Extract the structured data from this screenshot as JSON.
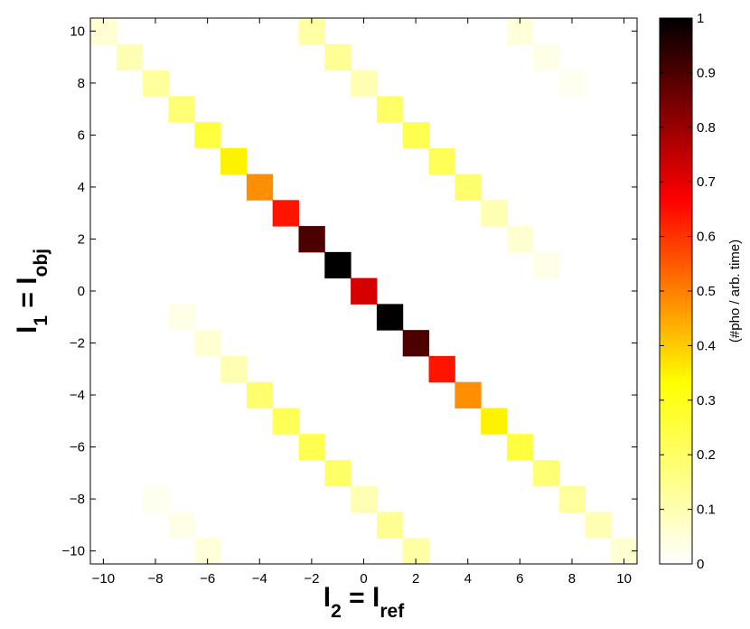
{
  "chart_data": {
    "type": "heatmap",
    "xlabel": {
      "base": "l",
      "sub1": "2",
      "eq": " = ",
      "base2": "l",
      "sub2": "ref"
    },
    "ylabel": {
      "base": "l",
      "sub1": "1",
      "eq": " = ",
      "base2": "l",
      "sub2": "obj"
    },
    "xlim": [
      -10.5,
      10.5
    ],
    "ylim": [
      -10.5,
      10.5
    ],
    "xticks": [
      -10,
      -8,
      -6,
      -4,
      -2,
      0,
      2,
      4,
      6,
      8,
      10
    ],
    "yticks": [
      -10,
      -8,
      -6,
      -4,
      -2,
      0,
      2,
      4,
      6,
      8,
      10
    ],
    "xtick_labels": [
      "−10",
      "−8",
      "−6",
      "−4",
      "−2",
      "0",
      "2",
      "4",
      "6",
      "8",
      "10"
    ],
    "ytick_labels": [
      "−10",
      "−8",
      "−6",
      "−4",
      "−2",
      "0",
      "2",
      "4",
      "6",
      "8",
      "10"
    ],
    "colormap": "hot (reversed)",
    "colorbar": {
      "label": "(#pho / arb. time)",
      "range": [
        0,
        1
      ],
      "ticks": [
        0,
        0.1,
        0.2,
        0.3,
        0.4,
        0.5,
        0.6,
        0.7,
        0.8,
        0.9,
        1
      ],
      "tick_labels": [
        "0",
        "0.1",
        "0.2",
        "0.3",
        "0.4",
        "0.5",
        "0.6",
        "0.7",
        "0.8",
        "0.9",
        "1"
      ]
    },
    "cells": [
      {
        "x": -10,
        "y": 10,
        "v": 0.06
      },
      {
        "x": -9,
        "y": 9,
        "v": 0.1
      },
      {
        "x": -8,
        "y": 8,
        "v": 0.13
      },
      {
        "x": -7,
        "y": 7,
        "v": 0.18
      },
      {
        "x": -6,
        "y": 6,
        "v": 0.25
      },
      {
        "x": -5,
        "y": 5,
        "v": 0.35
      },
      {
        "x": -4,
        "y": 4,
        "v": 0.48
      },
      {
        "x": -3,
        "y": 3,
        "v": 0.64
      },
      {
        "x": -2,
        "y": 2,
        "v": 0.9
      },
      {
        "x": -1,
        "y": 1,
        "v": 1.0
      },
      {
        "x": 0,
        "y": 0,
        "v": 0.72
      },
      {
        "x": 1,
        "y": -1,
        "v": 1.0
      },
      {
        "x": 2,
        "y": -2,
        "v": 0.9
      },
      {
        "x": 3,
        "y": -3,
        "v": 0.64
      },
      {
        "x": 4,
        "y": -4,
        "v": 0.48
      },
      {
        "x": 5,
        "y": -5,
        "v": 0.35
      },
      {
        "x": 6,
        "y": -6,
        "v": 0.25
      },
      {
        "x": 7,
        "y": -7,
        "v": 0.18
      },
      {
        "x": 8,
        "y": -8,
        "v": 0.13
      },
      {
        "x": 9,
        "y": -9,
        "v": 0.1
      },
      {
        "x": 10,
        "y": -10,
        "v": 0.06
      },
      {
        "x": -2,
        "y": 10,
        "v": 0.12
      },
      {
        "x": -1,
        "y": 9,
        "v": 0.14
      },
      {
        "x": 0,
        "y": 8,
        "v": 0.1
      },
      {
        "x": 1,
        "y": 7,
        "v": 0.2
      },
      {
        "x": 2,
        "y": 6,
        "v": 0.23
      },
      {
        "x": 3,
        "y": 5,
        "v": 0.22
      },
      {
        "x": 4,
        "y": 4,
        "v": 0.19
      },
      {
        "x": 5,
        "y": 3,
        "v": 0.1
      },
      {
        "x": 6,
        "y": 2,
        "v": 0.06
      },
      {
        "x": 7,
        "y": 1,
        "v": 0.03
      },
      {
        "x": 6,
        "y": 10,
        "v": 0.05
      },
      {
        "x": 7,
        "y": 9,
        "v": 0.03
      },
      {
        "x": 8,
        "y": 8,
        "v": 0.02
      },
      {
        "x": -7,
        "y": -1,
        "v": 0.03
      },
      {
        "x": -6,
        "y": -2,
        "v": 0.06
      },
      {
        "x": -5,
        "y": -3,
        "v": 0.1
      },
      {
        "x": -4,
        "y": -4,
        "v": 0.19
      },
      {
        "x": -3,
        "y": -5,
        "v": 0.22
      },
      {
        "x": -2,
        "y": -6,
        "v": 0.23
      },
      {
        "x": -1,
        "y": -7,
        "v": 0.2
      },
      {
        "x": 0,
        "y": -8,
        "v": 0.1
      },
      {
        "x": 1,
        "y": -9,
        "v": 0.14
      },
      {
        "x": 2,
        "y": -10,
        "v": 0.12
      },
      {
        "x": -8,
        "y": -8,
        "v": 0.02
      },
      {
        "x": -7,
        "y": -9,
        "v": 0.03
      },
      {
        "x": -6,
        "y": -10,
        "v": 0.05
      }
    ]
  }
}
